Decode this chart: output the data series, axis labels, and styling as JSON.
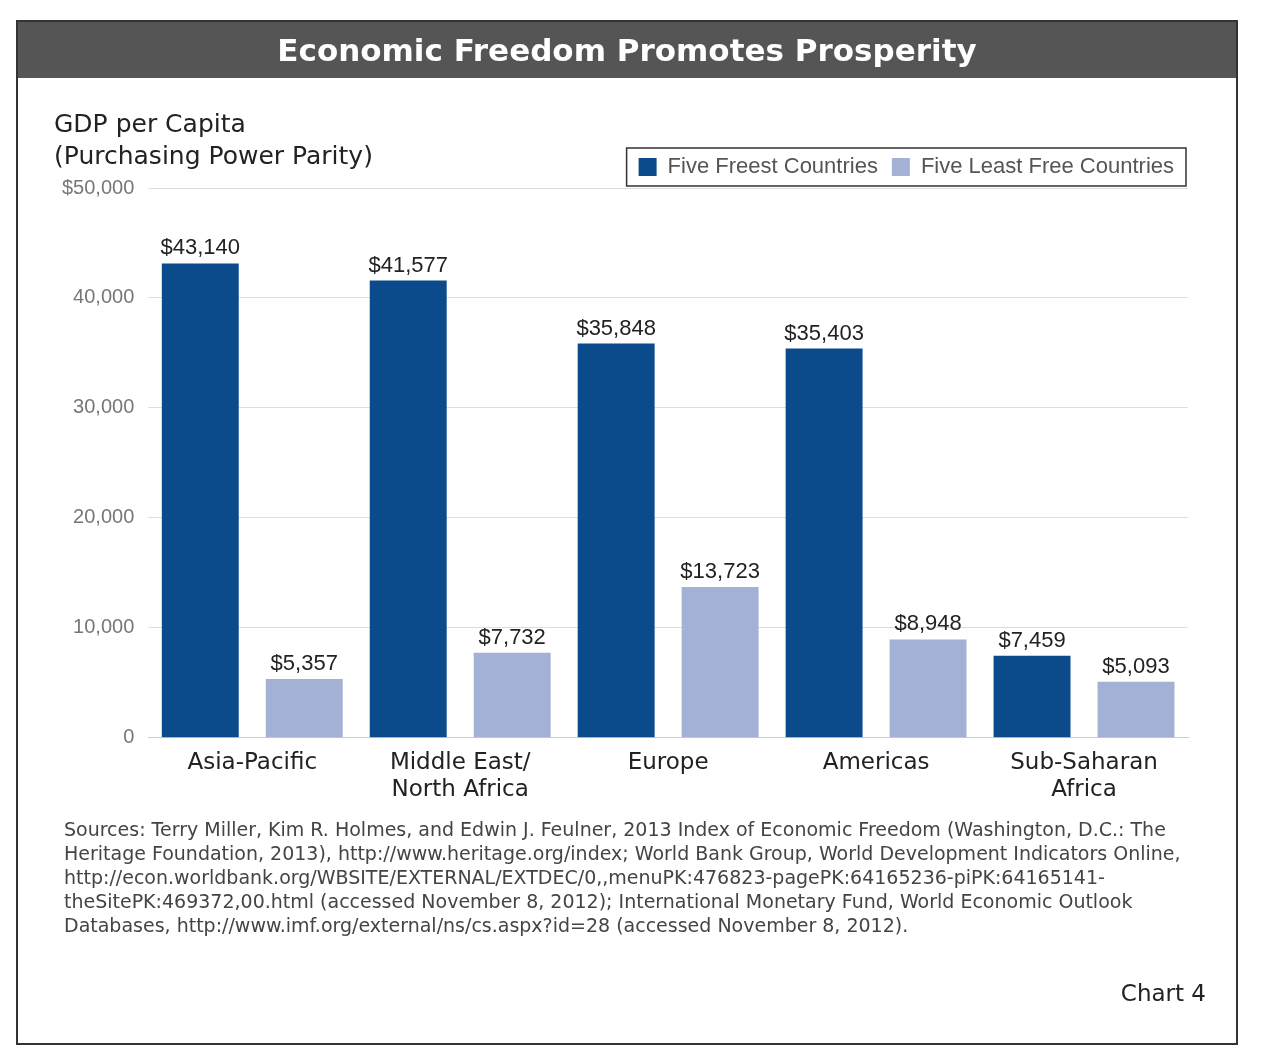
{
  "chart_data": {
    "type": "bar",
    "title": "Economic Freedom Promotes Prosperity",
    "ylabel": "GDP per Capita\n(Purchasing Power Parity)",
    "categories": [
      "Asia-Pacific",
      "Middle East/\nNorth Africa",
      "Europe",
      "Americas",
      "Sub-Saharan\nAfrica"
    ],
    "series": [
      {
        "name": "Five Freest Countries",
        "color": "#0b4a8b",
        "values": [
          43140,
          41577,
          35848,
          35403,
          7459
        ],
        "value_labels": [
          "$43,140",
          "$41,577",
          "$35,848",
          "$35,403",
          "$7,459"
        ]
      },
      {
        "name": "Five Least Free Countries",
        "color": "#a3b1d4",
        "values": [
          5357,
          7732,
          13723,
          8948,
          5093
        ],
        "value_labels": [
          "$5,357",
          "$7,732",
          "$13,723",
          "$8,948",
          "$5,093"
        ]
      }
    ],
    "ylim": [
      0,
      50000
    ],
    "yticks": [
      0,
      {
        "value": 10000,
        "label": "10,000"
      },
      {
        "value": 20000,
        "label": "20,000"
      },
      {
        "value": 30000,
        "label": "30,000"
      },
      {
        "value": 40000,
        "label": "40,000"
      },
      {
        "value": 50000,
        "label": "$50,000"
      }
    ],
    "grid": "y",
    "legend": "top right",
    "annotations": [
      "Sources: Terry Miller, Kim R. Holmes, and Edwin J. Feulner, 2013 Index of Economic Freedom (Washington, D.C.: The Heritage Foundation, 2013), http://www.heritage.org/index; World Bank Group, World Development Indicators Online, http://econ.worldbank.org/WBSITE/EXTERNAL/EXTDEC/0,,menuPK:476823-pagePK:64165236-piPK:64165141-theSitePK:469372,00.html (accessed November 8, 2012); International Monetary Fund, World Economic Outlook Databases, http://www.imf.org/external/ns/cs.aspx?id=28 (accessed November 8, 2012).",
      "Chart 4"
    ]
  }
}
